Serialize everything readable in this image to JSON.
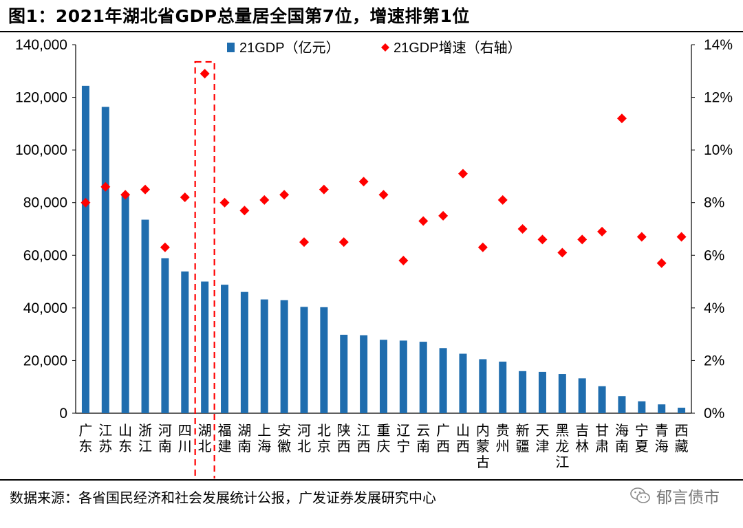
{
  "figure": {
    "title": "图1：2021年湖北省GDP总量居全国第7位，增速排第1位",
    "source": "数据来源：各省国民经济和社会发展统计公报，广发证券发展研究中心",
    "watermark": "郁言债市"
  },
  "chart_data": {
    "type": "bar",
    "categories": [
      "广东",
      "江苏",
      "山东",
      "浙江",
      "河南",
      "四川",
      "湖北",
      "福建",
      "湖南",
      "上海",
      "安徽",
      "河北",
      "北京",
      "陕西",
      "江西",
      "重庆",
      "辽宁",
      "云南",
      "广西",
      "山西",
      "内蒙古",
      "贵州",
      "新疆",
      "天津",
      "黑龙江",
      "吉林",
      "甘肃",
      "海南",
      "宁夏",
      "青海",
      "西藏"
    ],
    "series": [
      {
        "name": "21GDP（亿元）",
        "type": "bar",
        "axis": "left",
        "color": "#1F6DAE",
        "values": [
          124370,
          116364,
          83096,
          73516,
          58887,
          53851,
          50013,
          48810,
          46063,
          43215,
          42959,
          40391,
          40270,
          29801,
          29620,
          27894,
          27584,
          27147,
          24741,
          22590,
          20514,
          19586,
          15984,
          15695,
          14879,
          13236,
          10243,
          6475,
          4522,
          3347,
          2080
        ]
      },
      {
        "name": "21GDP增速（右轴）",
        "type": "scatter",
        "axis": "right",
        "color": "#FF0000",
        "marker": "diamond",
        "values": [
          8.0,
          8.6,
          8.3,
          8.5,
          6.3,
          8.2,
          12.9,
          8.0,
          7.7,
          8.1,
          8.3,
          6.5,
          8.5,
          6.5,
          8.8,
          8.3,
          5.8,
          7.3,
          7.5,
          9.1,
          6.3,
          8.1,
          7.0,
          6.6,
          6.1,
          6.6,
          6.9,
          11.2,
          6.7,
          5.7,
          6.7
        ]
      }
    ],
    "y_left": {
      "min": 0,
      "max": 140000,
      "ticks": [
        "0",
        "20,000",
        "40,000",
        "60,000",
        "80,000",
        "100,000",
        "120,000",
        "140,000"
      ]
    },
    "y_right": {
      "min": 0,
      "max": 14,
      "ticks": [
        "0%",
        "2%",
        "4%",
        "6%",
        "8%",
        "10%",
        "12%",
        "14%"
      ]
    },
    "legend_position": "top-center",
    "highlight": {
      "category": "湖北",
      "style": "red-dashed-box"
    },
    "grid": false
  }
}
